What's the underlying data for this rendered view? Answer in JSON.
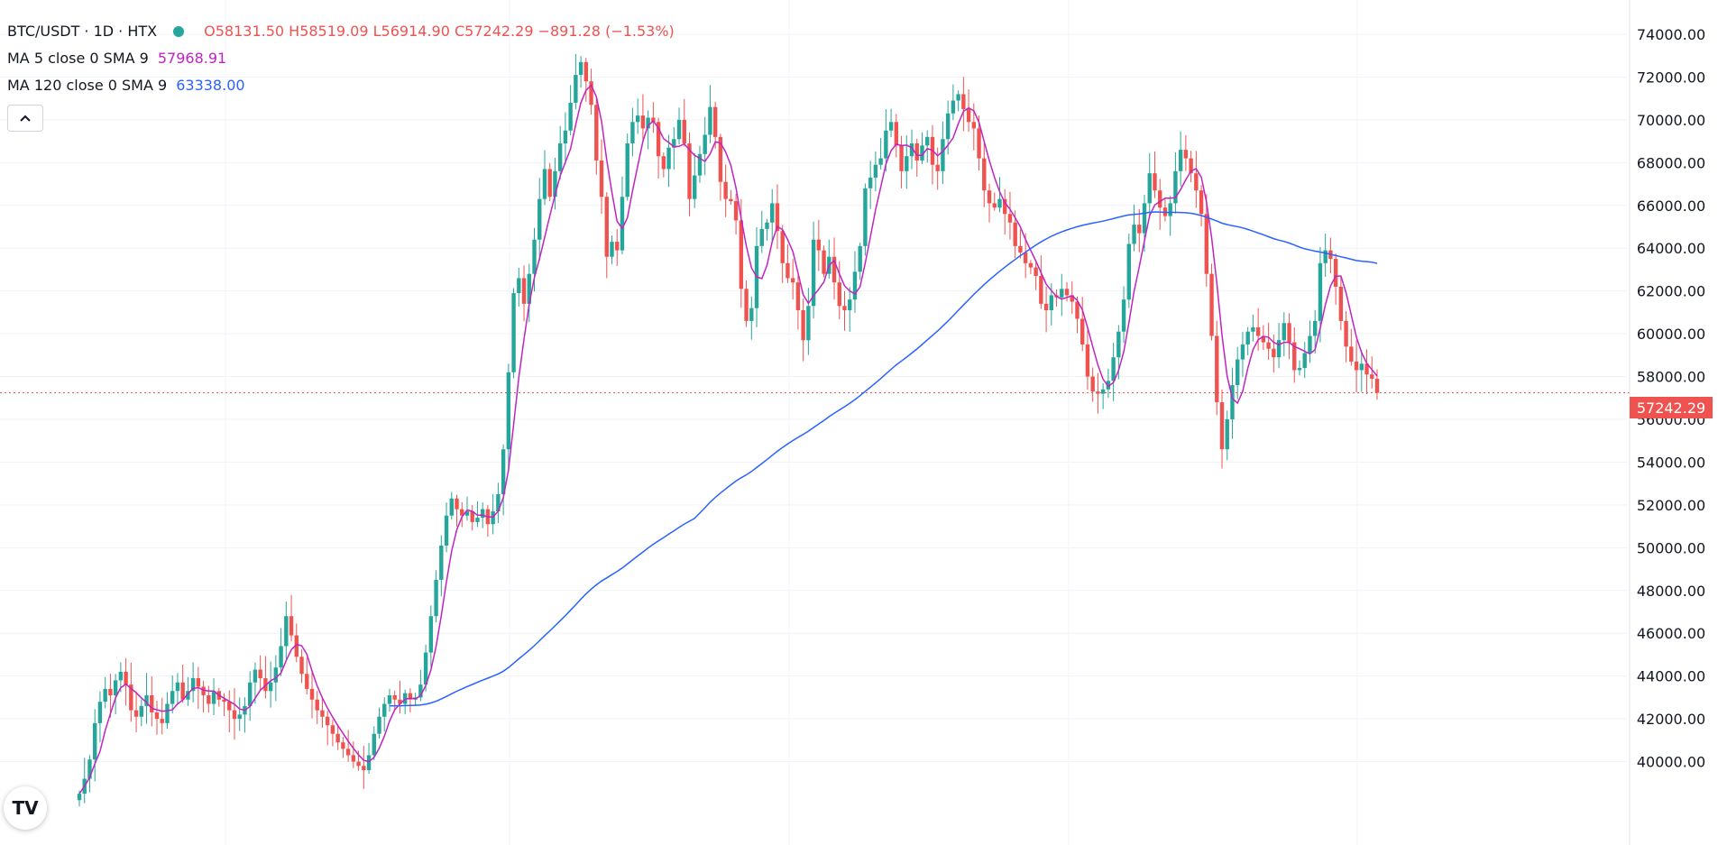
{
  "header": {
    "symbol": "BTC/USDT · 1D · HTX",
    "open": "O58131.50",
    "high": "H58519.09",
    "low": "L56914.90",
    "close": "C57242.29",
    "change": "−891.28 (−1.53%)",
    "ma5_label": "MA 5 close 0 SMA 9",
    "ma5_value": "57968.91",
    "ma120_label": "MA 120 close 0 SMA 9",
    "ma120_value": "63338.00",
    "collapse_icon": "chevron-up-icon",
    "logo_text": "TV"
  },
  "price_tag": "57242.29",
  "colors": {
    "up": "#26a69a",
    "down": "#ef5350",
    "ma5": "#c024c0",
    "ma120": "#2962ff",
    "grid": "#f0f3fa"
  },
  "chart_data": {
    "type": "candlestick",
    "title": "BTC/USDT · 1D · HTX",
    "ylim": [
      38000,
      74000
    ],
    "yticks": [
      "74000.00",
      "72000.00",
      "70000.00",
      "68000.00",
      "66000.00",
      "64000.00",
      "62000.00",
      "60000.00",
      "58000.00",
      "56000.00",
      "54000.00",
      "52000.00",
      "50000.00",
      "48000.00",
      "46000.00",
      "44000.00",
      "42000.00",
      "40000.00"
    ],
    "last_price": 57242.29,
    "grid": true,
    "candles_close": [
      38500,
      39200,
      40100,
      41800,
      42800,
      43400,
      43100,
      43800,
      44200,
      43600,
      42400,
      42100,
      42600,
      43100,
      42300,
      42000,
      41800,
      42700,
      43300,
      43700,
      42900,
      43300,
      43900,
      43500,
      43100,
      42700,
      43300,
      42900,
      42800,
      42400,
      42000,
      42200,
      42600,
      43700,
      44300,
      43900,
      43300,
      43700,
      44400,
      45400,
      46800,
      45900,
      44900,
      44100,
      43400,
      42900,
      42400,
      42100,
      41700,
      41300,
      40900,
      40600,
      40300,
      40000,
      39800,
      39600,
      40300,
      41300,
      42100,
      42700,
      43100,
      42900,
      42700,
      43200,
      42900,
      43000,
      43600,
      45100,
      46800,
      48500,
      50100,
      51500,
      52300,
      51800,
      51500,
      51700,
      51200,
      51400,
      51800,
      51100,
      51700,
      52500,
      54600,
      58200,
      61900,
      62600,
      61400,
      62800,
      64400,
      66300,
      67700,
      66400,
      67600,
      68900,
      69500,
      70800,
      72100,
      72700,
      71800,
      70700,
      68100,
      66400,
      63600,
      64300,
      63900,
      66400,
      68900,
      69900,
      70200,
      69600,
      70100,
      69900,
      68300,
      67700,
      68700,
      69100,
      70000,
      68900,
      66300,
      67400,
      68400,
      69300,
      70600,
      69200,
      67100,
      66300,
      66200,
      65300,
      62100,
      60600,
      61200,
      64100,
      64900,
      65200,
      66100,
      64800,
      63300,
      62600,
      62400,
      61100,
      59700,
      61300,
      64400,
      63900,
      62800,
      63600,
      62400,
      61300,
      61100,
      61600,
      62900,
      64100,
      66800,
      67300,
      67900,
      68200,
      69500,
      69900,
      68800,
      67600,
      68300,
      68900,
      68100,
      68800,
      69200,
      67900,
      67600,
      69100,
      70300,
      70900,
      71200,
      70500,
      69900,
      69600,
      68200,
      66700,
      66100,
      65900,
      66300,
      65600,
      65200,
      64100,
      63800,
      63300,
      63100,
      62700,
      61400,
      61100,
      61800,
      61700,
      62100,
      61800,
      61500,
      60700,
      59500,
      58000,
      57300,
      57200,
      57400,
      57800,
      58900,
      60100,
      61600,
      64200,
      65100,
      64700,
      66100,
      67500,
      66700,
      65900,
      65500,
      66100,
      67600,
      68600,
      68200,
      67500,
      66700,
      65600,
      62800,
      59900,
      56800,
      54600,
      56000,
      57600,
      58800,
      59500,
      60100,
      60300,
      59900,
      59600,
      59300,
      58900,
      59700,
      60500,
      59600,
      58300,
      58400,
      59100,
      59900,
      60600,
      63300,
      63900,
      63500,
      62200,
      60600,
      59400,
      58700,
      58300,
      58600,
      58100,
      57900,
      57242
    ]
  }
}
